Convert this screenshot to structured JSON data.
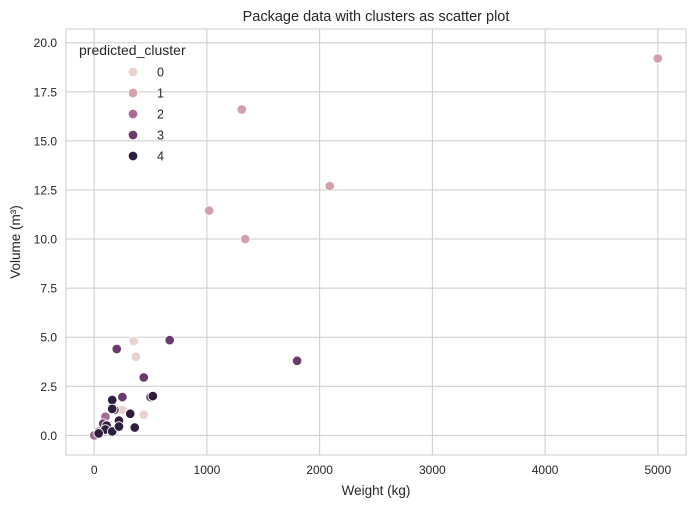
{
  "chart_data": {
    "type": "scatter",
    "title": "Package data with clusters as scatter plot",
    "xlabel": "Weight (kg)",
    "ylabel": "Volume (m³)",
    "xlim": [
      -250,
      5250
    ],
    "ylim": [
      -1.0,
      20.7
    ],
    "xticks": [
      0,
      1000,
      2000,
      3000,
      4000,
      5000
    ],
    "yticks": [
      0.0,
      2.5,
      5.0,
      7.5,
      10.0,
      12.5,
      15.0,
      17.5,
      20.0
    ],
    "grid": true,
    "legend": {
      "title": "predicted_cluster",
      "placement": "top-left",
      "entries": [
        "0",
        "1",
        "2",
        "3",
        "4"
      ]
    },
    "series": [
      {
        "name": "0",
        "color": "#ead3ce",
        "points": [
          [
            350,
            4.8
          ],
          [
            370,
            4.0
          ],
          [
            440,
            1.05
          ],
          [
            250,
            1.3
          ],
          [
            20,
            0.1
          ],
          [
            60,
            0.3
          ]
        ]
      },
      {
        "name": "1",
        "color": "#d3a1ab",
        "points": [
          [
            5000,
            19.2
          ],
          [
            1310,
            16.6
          ],
          [
            2090,
            12.7
          ],
          [
            1020,
            11.45
          ],
          [
            1340,
            10.0
          ]
        ]
      },
      {
        "name": "2",
        "color": "#a86a94",
        "points": [
          [
            0,
            0.0
          ],
          [
            100,
            0.95
          ],
          [
            80,
            0.55
          ],
          [
            40,
            0.2
          ],
          [
            130,
            0.35
          ]
        ]
      },
      {
        "name": "3",
        "color": "#6b3a6c",
        "points": [
          [
            200,
            4.4
          ],
          [
            670,
            4.85
          ],
          [
            1800,
            3.8
          ],
          [
            440,
            2.95
          ],
          [
            250,
            1.95
          ],
          [
            500,
            1.95
          ],
          [
            180,
            1.3
          ],
          [
            80,
            0.6
          ]
        ]
      },
      {
        "name": "4",
        "color": "#2d1e3e",
        "points": [
          [
            160,
            1.8
          ],
          [
            160,
            1.35
          ],
          [
            320,
            1.1
          ],
          [
            220,
            0.75
          ],
          [
            110,
            0.5
          ],
          [
            100,
            0.3
          ],
          [
            160,
            0.2
          ],
          [
            220,
            0.45
          ],
          [
            360,
            0.4
          ],
          [
            520,
            2.0
          ],
          [
            40,
            0.1
          ]
        ]
      }
    ]
  }
}
